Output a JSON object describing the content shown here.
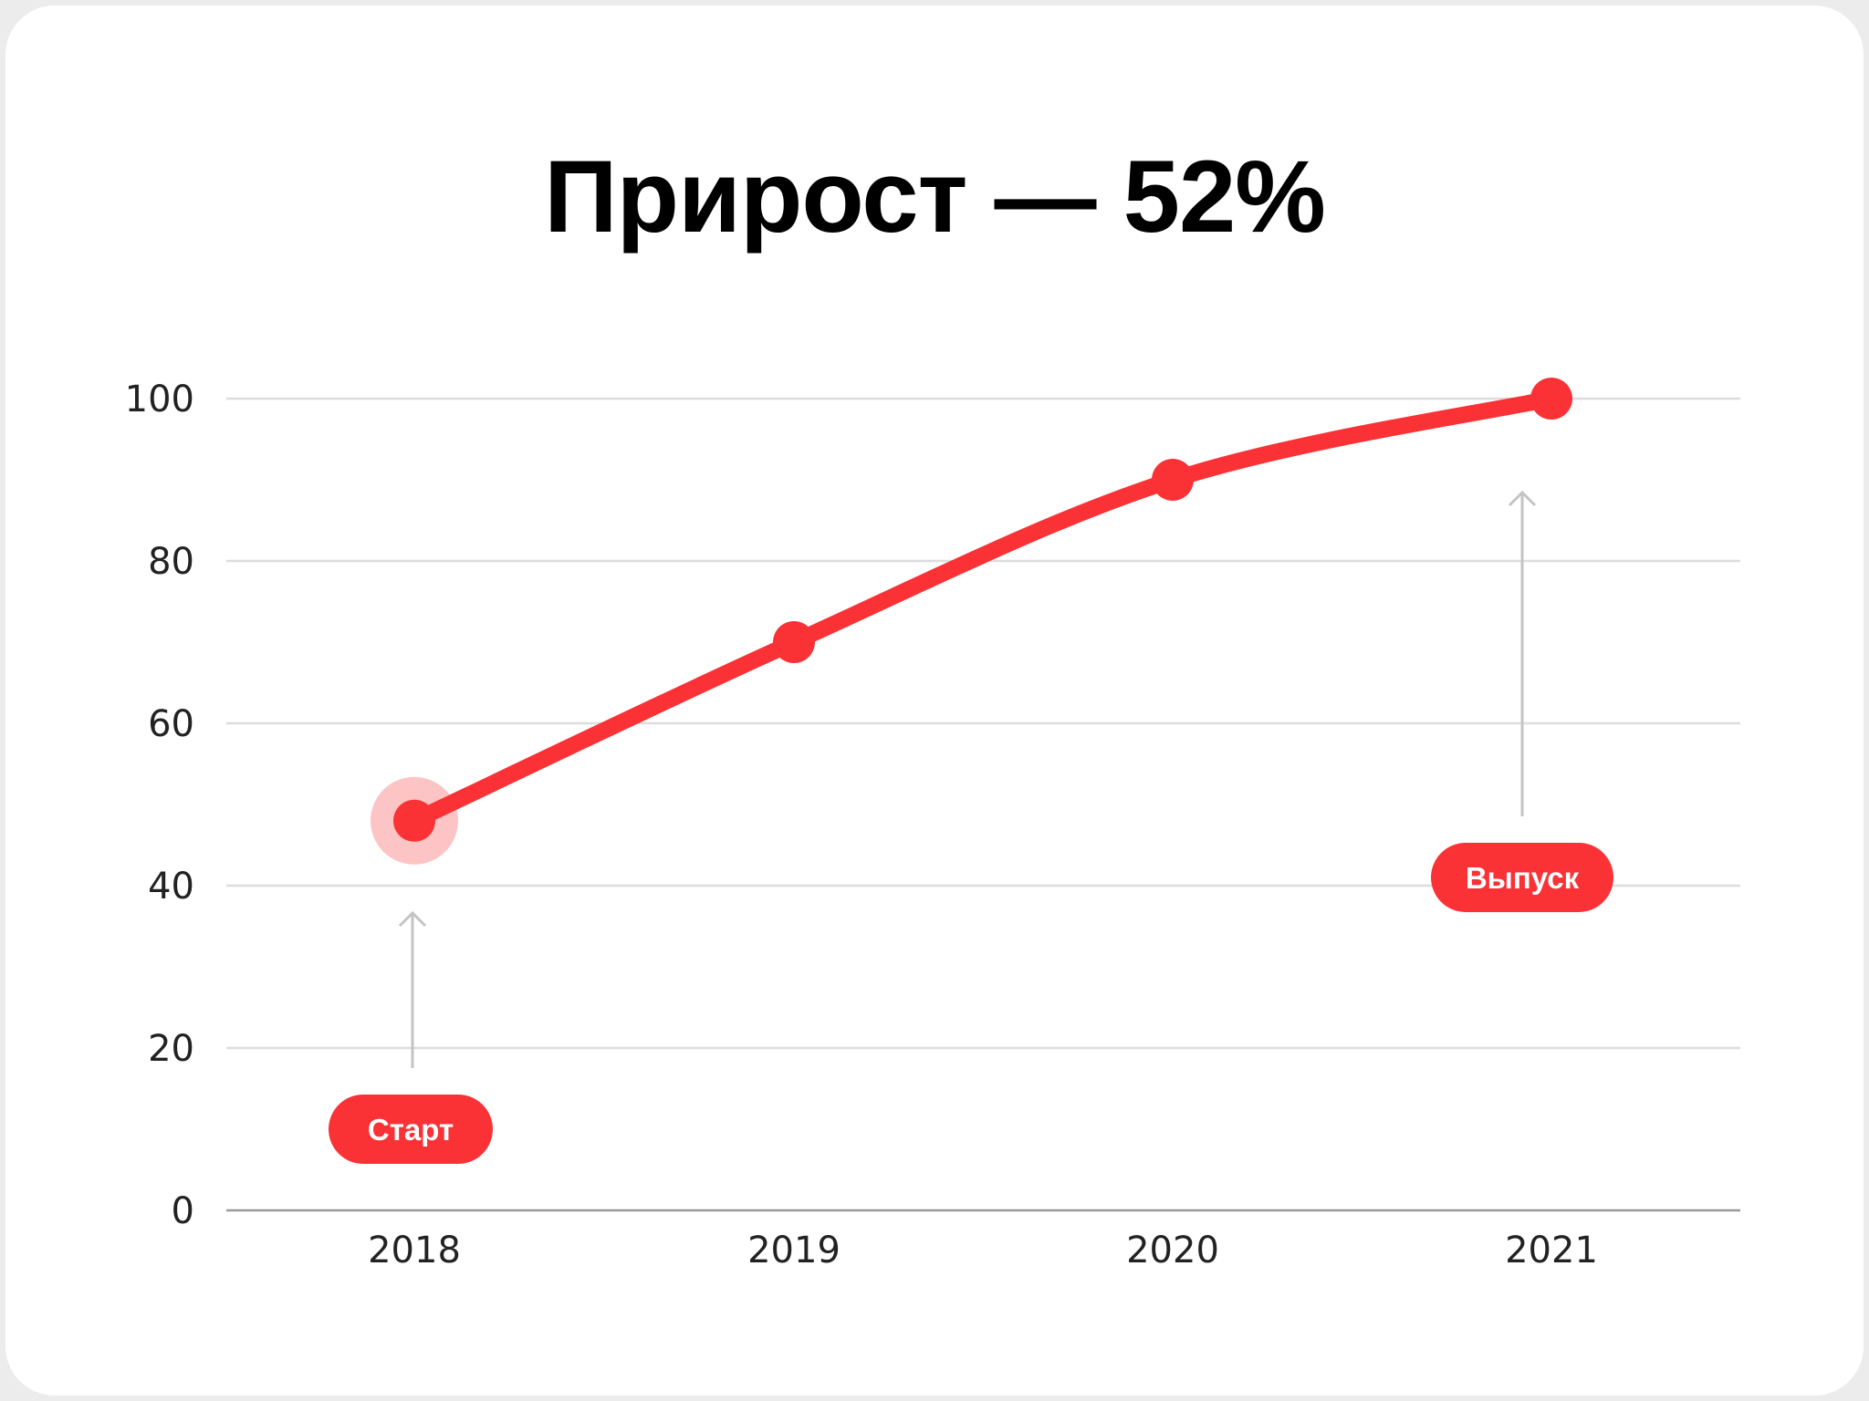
{
  "chart_data": {
    "type": "line",
    "title": "Прирост — 52%",
    "xlabel": "",
    "ylabel": "",
    "categories": [
      "2018",
      "2019",
      "2020",
      "2021"
    ],
    "values": [
      48,
      70,
      90,
      100
    ],
    "ylim": [
      0,
      100
    ],
    "yticks": [
      0,
      20,
      40,
      60,
      80,
      100
    ],
    "grid": true,
    "annotations": [
      {
        "label": "Старт",
        "category": "2018"
      },
      {
        "label": "Выпуск",
        "category": "2021"
      }
    ],
    "colors": {
      "line": "#fa3236",
      "halo": "#fcc4c4",
      "grid": "#dddddd",
      "axis": "#999999",
      "arrow": "#c4c4c4"
    }
  }
}
